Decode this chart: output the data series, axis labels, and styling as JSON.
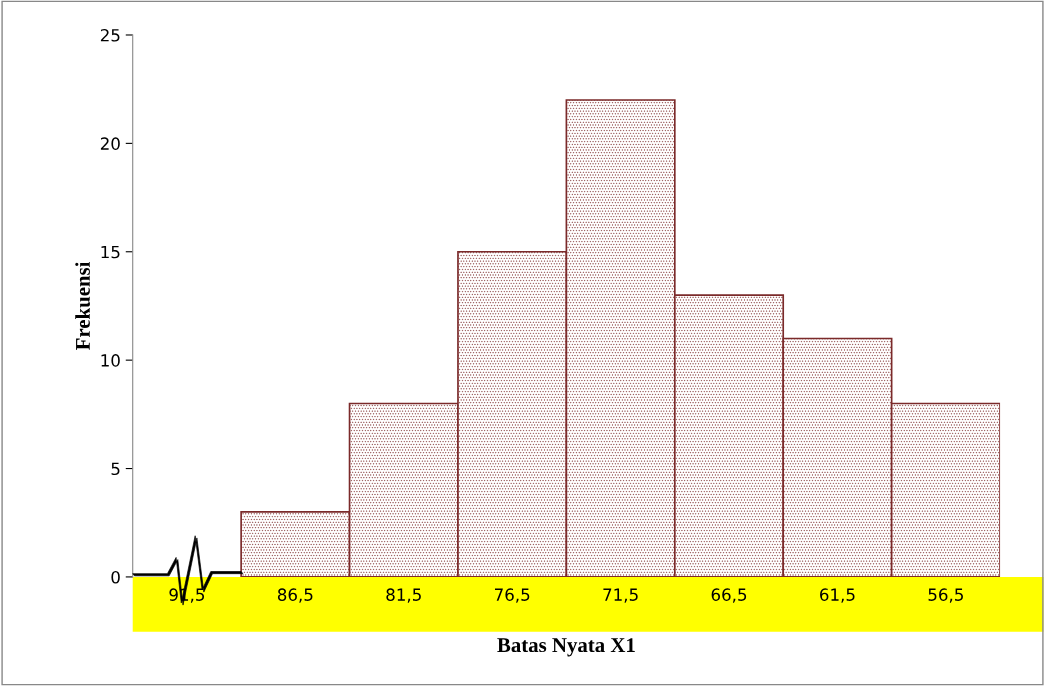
{
  "chart_data": {
    "type": "bar",
    "xlabel": "Batas Nyata X1",
    "ylabel": "Frekuensi",
    "categories": [
      "91,5",
      "86,5",
      "81,5",
      "76,5",
      "71,5",
      "66,5",
      "61,5",
      "56,5"
    ],
    "values": [
      null,
      3,
      8,
      15,
      22,
      13,
      11,
      8
    ],
    "color": "#7b2a2a",
    "ylim": [
      0,
      25
    ],
    "yticks": [
      0,
      5,
      10,
      15,
      20,
      25
    ],
    "grid": false
  }
}
